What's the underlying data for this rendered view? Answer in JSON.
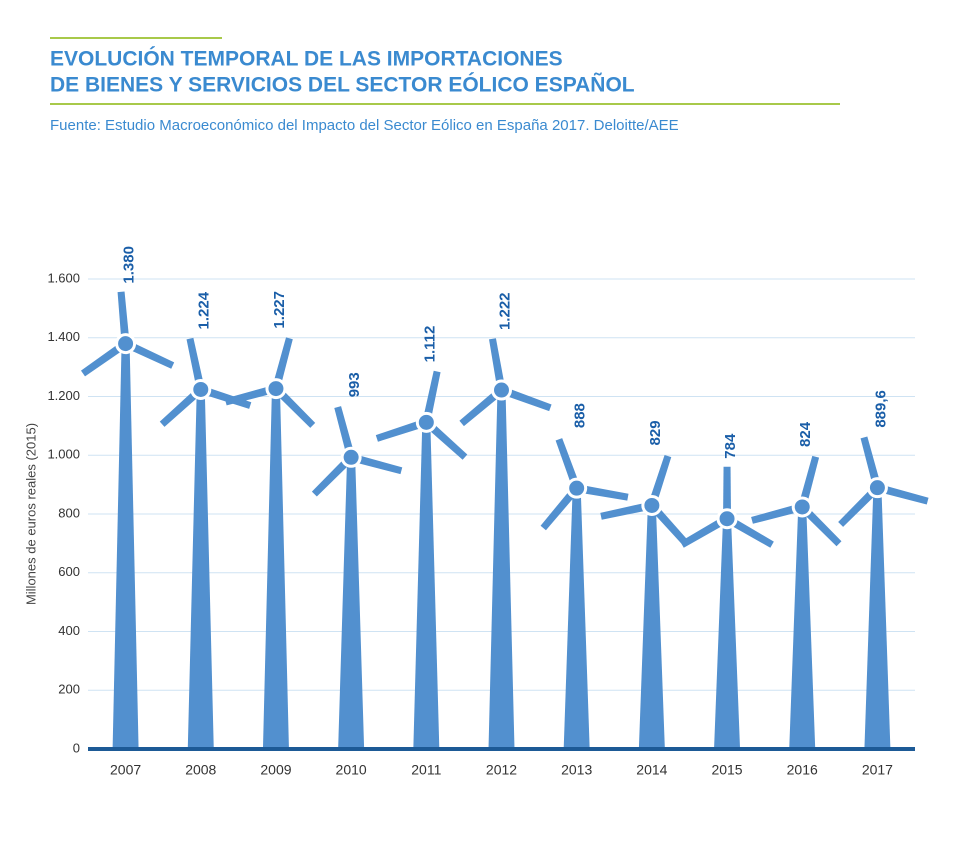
{
  "chart_data": {
    "type": "wind-turbine",
    "title": [
      "EVOLUCIÓN TEMPORAL DE LAS IMPORTACIONES",
      "DE BIENES Y SERVICIOS DEL SECTOR EÓLICO ESPAÑOL"
    ],
    "subtitle": "Fuente: Estudio Macroeconómico del Impacto del Sector Eólico en España 2017. Deloitte/AEE",
    "y_label": "Millones de euros reales (2015)",
    "categories": [
      "2007",
      "2008",
      "2009",
      "2010",
      "2011",
      "2012",
      "2013",
      "2014",
      "2015",
      "2016",
      "2017"
    ],
    "values": [
      1380,
      1224,
      1227,
      993,
      1112,
      1222,
      888,
      829,
      784,
      824,
      889.6
    ],
    "value_labels": [
      "1.380",
      "1.224",
      "1.227",
      "993",
      "1.112",
      "1.222",
      "888",
      "829",
      "784",
      "824",
      "889,6"
    ],
    "color": "#5290cf",
    "ylim": [
      0,
      1600
    ],
    "yticks": [
      0,
      200,
      400,
      600,
      800,
      {
        "value": 1000,
        "label": "1.000"
      },
      {
        "value": 1200,
        "label": "1.200"
      },
      {
        "value": 1400,
        "label": "1.400"
      },
      {
        "value": 1600,
        "label": "1.600"
      }
    ],
    "grid": true
  }
}
